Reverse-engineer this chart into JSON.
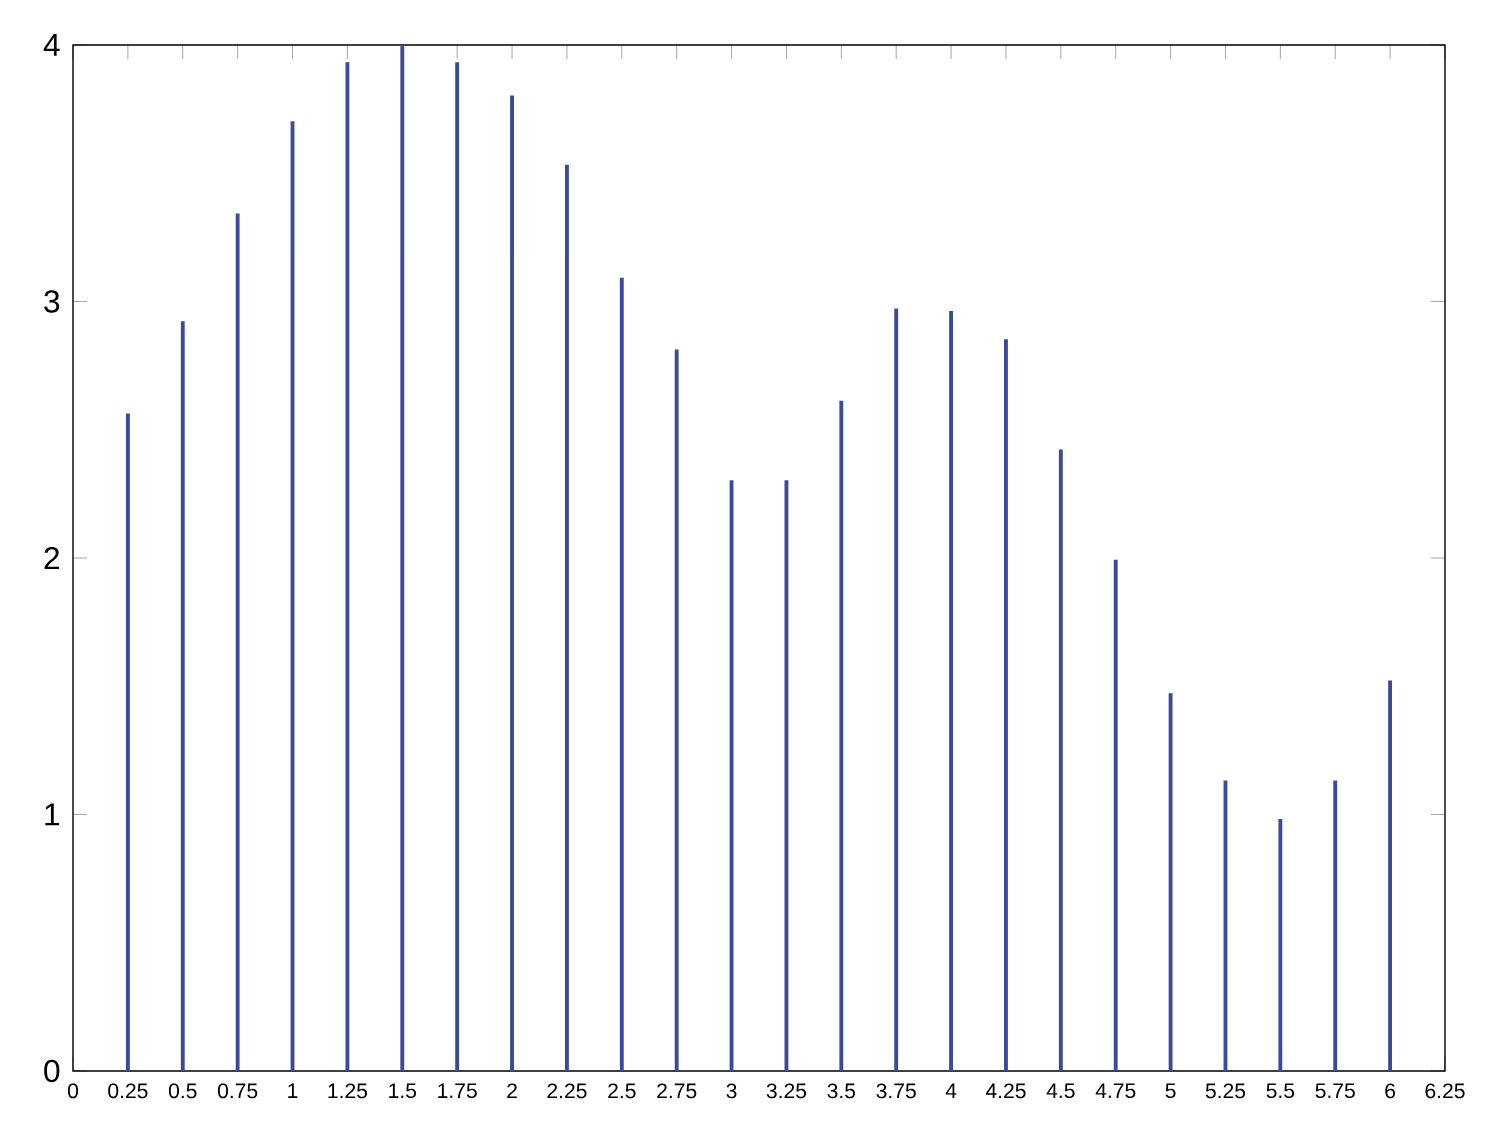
{
  "chart_data": {
    "type": "bar",
    "x": [
      0.25,
      0.5,
      0.75,
      1,
      1.25,
      1.5,
      1.75,
      2,
      2.25,
      2.5,
      2.75,
      3,
      3.25,
      3.5,
      3.75,
      4,
      4.25,
      4.5,
      4.75,
      5,
      5.25,
      5.5,
      5.75,
      6
    ],
    "values": [
      2.56,
      2.92,
      3.34,
      3.7,
      3.93,
      4.0,
      3.93,
      3.8,
      3.53,
      3.09,
      2.81,
      2.3,
      2.3,
      2.61,
      2.97,
      2.96,
      2.85,
      2.42,
      1.99,
      1.47,
      1.13,
      0.98,
      1.13,
      1.52
    ],
    "color": "#3b4a9a",
    "xlim": [
      0,
      6.25
    ],
    "ylim": [
      0,
      4
    ],
    "xticks": [
      0,
      0.25,
      0.5,
      0.75,
      1,
      1.25,
      1.5,
      1.75,
      2,
      2.25,
      2.5,
      2.75,
      3,
      3.25,
      3.5,
      3.75,
      4,
      4.25,
      4.5,
      4.75,
      5,
      5.25,
      5.5,
      5.75,
      6,
      6.25
    ],
    "yticks": [
      0,
      1,
      2,
      3,
      4
    ]
  }
}
